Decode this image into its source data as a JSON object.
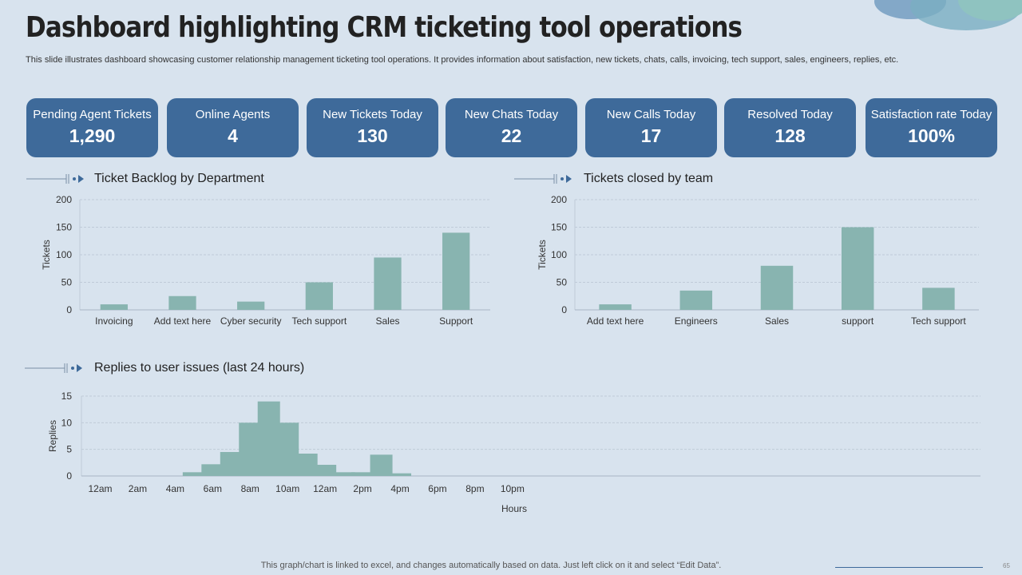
{
  "title": "Dashboard highlighting CRM ticketing tool operations",
  "subtitle": "This slide illustrates dashboard showcasing customer relationship management ticketing tool operations. It provides information about satisfaction, new tickets, chats, calls, invoicing, tech support, sales, engineers, replies, etc.",
  "kpis": [
    {
      "label": "Pending Agent Tickets",
      "value": "1,290"
    },
    {
      "label": "Online Agents",
      "value": "4"
    },
    {
      "label": "New Tickets Today",
      "value": "130"
    },
    {
      "label": "New Chats Today",
      "value": "22"
    },
    {
      "label": "New Calls Today",
      "value": "17"
    },
    {
      "label": "Resolved Today",
      "value": "128"
    },
    {
      "label": "Satisfaction rate Today",
      "value": "100%"
    }
  ],
  "colors": {
    "accent": "#3e6a9a",
    "bar": "#88b4b0",
    "background": "#d8e3ee"
  },
  "chart_data": [
    {
      "type": "bar",
      "title": "Ticket Backlog by Department",
      "categories": [
        "Invoicing",
        "Add text here",
        "Cyber security",
        "Tech support",
        "Sales",
        "Support"
      ],
      "values": [
        10,
        25,
        15,
        50,
        95,
        140
      ],
      "ylabel": "Tickets",
      "xlabel": "",
      "ylim": [
        0,
        200
      ],
      "yticks": [
        0,
        50,
        100,
        150,
        200
      ]
    },
    {
      "type": "bar",
      "title": "Tickets closed by team",
      "categories": [
        "Add text here",
        "Engineers",
        "Sales",
        "support",
        "Tech support"
      ],
      "values": [
        10,
        35,
        80,
        150,
        40
      ],
      "ylabel": "Tickets",
      "xlabel": "",
      "ylim": [
        0,
        200
      ],
      "yticks": [
        0,
        50,
        100,
        150,
        200
      ]
    },
    {
      "type": "bar",
      "title": "Replies to user issues (last 24 hours)",
      "x": [
        "0",
        "1",
        "2",
        "3",
        "4",
        "5",
        "6",
        "7",
        "8",
        "9",
        "10",
        "11",
        "12",
        "13",
        "14",
        "15",
        "16",
        "17",
        "18",
        "19",
        "20",
        "21",
        "22",
        "23"
      ],
      "values": [
        0,
        0,
        0,
        0,
        0,
        0.7,
        2.2,
        4.5,
        10,
        14,
        10,
        4.2,
        2.1,
        0.7,
        0.7,
        4,
        0.5,
        0,
        0,
        0,
        0,
        0,
        0,
        0
      ],
      "tick_labels": [
        "12am",
        "2am",
        "4am",
        "6am",
        "8am",
        "10am",
        "12am",
        "2pm",
        "4pm",
        "6pm",
        "8pm",
        "10pm"
      ],
      "ylabel": "Replies",
      "xlabel": "Hours",
      "ylim": [
        0,
        15
      ],
      "yticks": [
        0,
        5,
        10,
        15
      ]
    }
  ],
  "footer": "This graph/chart is linked to excel,  and changes automatically based on data. Just left click on it and select “Edit Data”.",
  "page_number": "65"
}
